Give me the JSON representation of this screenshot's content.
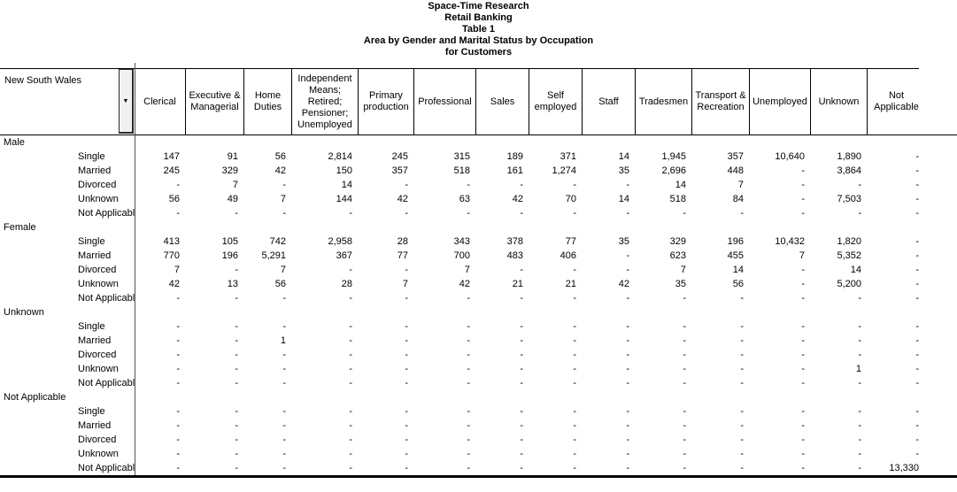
{
  "title_lines": [
    "Space-Time Research",
    "Retail Banking",
    "Table 1",
    "Area by Gender and Marital Status by Occupation",
    "for Customers"
  ],
  "icons": {
    "dropdown_arrow": "▼"
  },
  "colors": {
    "background": "#ffffff",
    "text": "#000000",
    "line": "#000000",
    "divider": "#555555",
    "button_face": "#f1f1f1"
  },
  "table": {
    "area_label": "New South Wales",
    "columns": [
      "Clerical",
      "Executive & Managerial",
      "Home Duties",
      "Independent Means; Retired; Pensioner; Unemployed",
      "Primary production",
      "Professional",
      "Sales",
      "Self employed",
      "Staff",
      "Tradesmen",
      "Transport & Recreation",
      "Unemployed",
      "Unknown",
      "Not Applicable"
    ],
    "row_sections": [
      {
        "label": "Male",
        "rows": [
          {
            "label": "Single",
            "values": [
              "147",
              "91",
              "56",
              "2,814",
              "245",
              "315",
              "189",
              "371",
              "14",
              "1,945",
              "357",
              "10,640",
              "1,890",
              "-"
            ]
          },
          {
            "label": "Married",
            "values": [
              "245",
              "329",
              "42",
              "150",
              "357",
              "518",
              "161",
              "1,274",
              "35",
              "2,696",
              "448",
              "-",
              "3,864",
              "-"
            ]
          },
          {
            "label": "Divorced",
            "values": [
              "-",
              "7",
              "-",
              "14",
              "-",
              "-",
              "-",
              "-",
              "-",
              "14",
              "7",
              "-",
              "-",
              "-"
            ]
          },
          {
            "label": "Unknown",
            "values": [
              "56",
              "49",
              "7",
              "144",
              "42",
              "63",
              "42",
              "70",
              "14",
              "518",
              "84",
              "-",
              "7,503",
              "-"
            ]
          },
          {
            "label": "Not Applicable",
            "values": [
              "-",
              "-",
              "-",
              "-",
              "-",
              "-",
              "-",
              "-",
              "-",
              "-",
              "-",
              "-",
              "-",
              "-"
            ]
          }
        ]
      },
      {
        "label": "Female",
        "rows": [
          {
            "label": "Single",
            "values": [
              "413",
              "105",
              "742",
              "2,958",
              "28",
              "343",
              "378",
              "77",
              "35",
              "329",
              "196",
              "10,432",
              "1,820",
              "-"
            ]
          },
          {
            "label": "Married",
            "values": [
              "770",
              "196",
              "5,291",
              "367",
              "77",
              "700",
              "483",
              "406",
              "-",
              "623",
              "455",
              "7",
              "5,352",
              "-"
            ]
          },
          {
            "label": "Divorced",
            "values": [
              "7",
              "-",
              "7",
              "-",
              "-",
              "7",
              "-",
              "-",
              "-",
              "7",
              "14",
              "-",
              "14",
              "-"
            ]
          },
          {
            "label": "Unknown",
            "values": [
              "42",
              "13",
              "56",
              "28",
              "7",
              "42",
              "21",
              "21",
              "42",
              "35",
              "56",
              "-",
              "5,200",
              "-"
            ]
          },
          {
            "label": "Not Applicable",
            "values": [
              "-",
              "-",
              "-",
              "-",
              "-",
              "-",
              "-",
              "-",
              "-",
              "-",
              "-",
              "-",
              "-",
              "-"
            ]
          }
        ]
      },
      {
        "label": "Unknown",
        "rows": [
          {
            "label": "Single",
            "values": [
              "-",
              "-",
              "-",
              "-",
              "-",
              "-",
              "-",
              "-",
              "-",
              "-",
              "-",
              "-",
              "-",
              "-"
            ]
          },
          {
            "label": "Married",
            "values": [
              "-",
              "-",
              "1",
              "-",
              "-",
              "-",
              "-",
              "-",
              "-",
              "-",
              "-",
              "-",
              "-",
              "-"
            ]
          },
          {
            "label": "Divorced",
            "values": [
              "-",
              "-",
              "-",
              "-",
              "-",
              "-",
              "-",
              "-",
              "-",
              "-",
              "-",
              "-",
              "-",
              "-"
            ]
          },
          {
            "label": "Unknown",
            "values": [
              "-",
              "-",
              "-",
              "-",
              "-",
              "-",
              "-",
              "-",
              "-",
              "-",
              "-",
              "-",
              "1",
              "-"
            ]
          },
          {
            "label": "Not Applicable",
            "values": [
              "-",
              "-",
              "-",
              "-",
              "-",
              "-",
              "-",
              "-",
              "-",
              "-",
              "-",
              "-",
              "-",
              "-"
            ]
          }
        ]
      },
      {
        "label": "Not Applicable",
        "rows": [
          {
            "label": "Single",
            "values": [
              "-",
              "-",
              "-",
              "-",
              "-",
              "-",
              "-",
              "-",
              "-",
              "-",
              "-",
              "-",
              "-",
              "-"
            ]
          },
          {
            "label": "Married",
            "values": [
              "-",
              "-",
              "-",
              "-",
              "-",
              "-",
              "-",
              "-",
              "-",
              "-",
              "-",
              "-",
              "-",
              "-"
            ]
          },
          {
            "label": "Divorced",
            "values": [
              "-",
              "-",
              "-",
              "-",
              "-",
              "-",
              "-",
              "-",
              "-",
              "-",
              "-",
              "-",
              "-",
              "-"
            ]
          },
          {
            "label": "Unknown",
            "values": [
              "-",
              "-",
              "-",
              "-",
              "-",
              "-",
              "-",
              "-",
              "-",
              "-",
              "-",
              "-",
              "-",
              "-"
            ]
          },
          {
            "label": "Not Applicable",
            "values": [
              "-",
              "-",
              "-",
              "-",
              "-",
              "-",
              "-",
              "-",
              "-",
              "-",
              "-",
              "-",
              "-",
              "13,330"
            ]
          }
        ]
      }
    ]
  }
}
